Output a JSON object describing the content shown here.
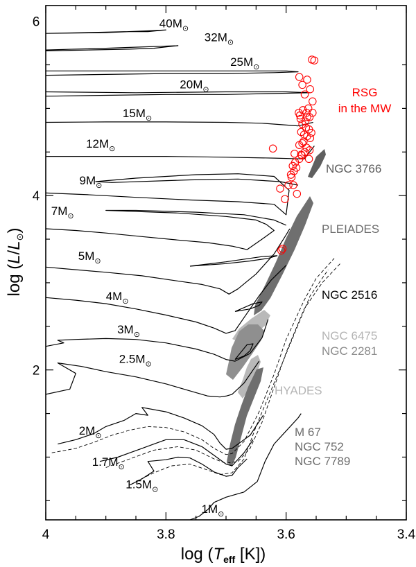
{
  "chart_data": {
    "type": "scatter",
    "title": "",
    "xlabel": "log (T_eff [K])",
    "ylabel": "log (L/L_sun)",
    "x_axis": {
      "label_pre": "log  (",
      "label_var": "T",
      "label_sub": "eff",
      "label_post": " [K])",
      "reversed": true
    },
    "y_axis": {
      "label_pre": "log  (",
      "label_var": "L",
      "label_mid": "/",
      "label_var2": "L",
      "label_post": ")"
    },
    "xlim": [
      4.0,
      3.4
    ],
    "ylim": [
      0.28,
      6.18
    ],
    "x_ticks": [
      {
        "v": 4.0,
        "label": "4"
      },
      {
        "v": 3.8,
        "label": "3.8"
      },
      {
        "v": 3.6,
        "label": "3.6"
      },
      {
        "v": 3.4,
        "label": "3.4"
      }
    ],
    "y_ticks": [
      {
        "v": 2,
        "label": "2"
      },
      {
        "v": 4,
        "label": "4"
      },
      {
        "v": 6,
        "label": "6"
      }
    ],
    "mass_labels": [
      {
        "text": "40M",
        "x": 3.811,
        "y": 5.93
      },
      {
        "text": "32M",
        "x": 3.736,
        "y": 5.77
      },
      {
        "text": "25M",
        "x": 3.693,
        "y": 5.49
      },
      {
        "text": "20M",
        "x": 3.777,
        "y": 5.23
      },
      {
        "text": "15M",
        "x": 3.872,
        "y": 4.9
      },
      {
        "text": "12M",
        "x": 3.933,
        "y": 4.55
      },
      {
        "text": "9M",
        "x": 3.944,
        "y": 4.13
      },
      {
        "text": "7M",
        "x": 3.991,
        "y": 3.78
      },
      {
        "text": "5M",
        "x": 3.946,
        "y": 3.26
      },
      {
        "text": "4M",
        "x": 3.9,
        "y": 2.8
      },
      {
        "text": "3M",
        "x": 3.881,
        "y": 2.42
      },
      {
        "text": "2.5M",
        "x": 3.878,
        "y": 2.08
      },
      {
        "text": "2M",
        "x": 3.945,
        "y": 1.26
      },
      {
        "text": "1.7M",
        "x": 3.923,
        "y": 0.9
      },
      {
        "text": "1.5M",
        "x": 3.867,
        "y": 0.64
      },
      {
        "text": "1M",
        "x": 3.741,
        "y": 0.36
      }
    ],
    "series": [
      {
        "name": "40M",
        "style": "solid",
        "x": [
          4.0,
          3.93,
          3.87,
          3.83,
          3.8,
          3.83,
          3.9,
          4.0
        ],
        "y": [
          5.86,
          5.87,
          5.88,
          5.88,
          5.9,
          5.89,
          5.87,
          5.86
        ]
      },
      {
        "name": "32M",
        "style": "solid",
        "x": [
          4.0,
          3.93,
          3.86,
          3.82,
          3.78,
          3.82,
          3.9,
          4.0
        ],
        "y": [
          5.66,
          5.67,
          5.68,
          5.69,
          5.72,
          5.71,
          5.69,
          5.67
        ]
      },
      {
        "name": "25M",
        "style": "solid",
        "x": [
          4.0,
          3.9,
          3.8,
          3.7,
          3.62,
          3.58,
          3.6,
          3.7,
          3.85,
          4.0
        ],
        "y": [
          5.38,
          5.39,
          5.4,
          5.4,
          5.41,
          5.42,
          5.43,
          5.43,
          5.43,
          5.43
        ]
      },
      {
        "name": "20M",
        "style": "solid",
        "x": [
          4.0,
          3.9,
          3.8,
          3.7,
          3.63,
          3.56,
          3.6,
          3.7,
          3.85,
          4.0
        ],
        "y": [
          5.14,
          5.15,
          5.16,
          5.16,
          5.17,
          5.18,
          5.19,
          5.19,
          5.18,
          5.19
        ]
      },
      {
        "name": "15M",
        "style": "solid",
        "x": [
          4.0,
          3.9,
          3.8,
          3.7,
          3.64,
          3.58,
          3.555
        ],
        "y": [
          4.84,
          4.845,
          4.845,
          4.84,
          4.83,
          4.8,
          4.84
        ]
      },
      {
        "name": "12M",
        "style": "solid",
        "x": [
          4.0,
          3.9,
          3.8,
          3.7,
          3.62,
          3.57,
          3.553
        ],
        "y": [
          4.45,
          4.45,
          4.45,
          4.44,
          4.43,
          4.42,
          4.57
        ]
      },
      {
        "name": "9M",
        "style": "solid",
        "x": [
          4.0,
          3.93,
          3.85,
          3.76,
          3.68,
          3.62,
          3.6,
          3.595,
          3.62,
          3.68,
          3.75,
          3.85,
          3.917,
          3.89,
          3.76,
          3.68,
          3.61,
          3.58
        ],
        "y": [
          4.03,
          4.01,
          3.98,
          3.95,
          3.93,
          3.9,
          3.78,
          4.06,
          4.22,
          4.25,
          4.24,
          4.2,
          4.16,
          4.15,
          4.18,
          4.19,
          4.16,
          4.12
        ]
      },
      {
        "name": "7M",
        "style": "solid",
        "x": [
          4.0,
          3.95,
          3.9,
          3.84,
          3.78,
          3.73,
          3.69,
          3.665,
          3.64,
          3.62,
          3.633,
          3.65,
          3.7,
          3.78,
          3.86,
          3.9,
          3.85,
          3.75,
          3.67,
          3.62,
          3.6
        ],
        "y": [
          3.62,
          3.6,
          3.57,
          3.53,
          3.49,
          3.46,
          3.42,
          3.38,
          3.5,
          3.6,
          3.67,
          3.72,
          3.76,
          3.8,
          3.82,
          3.83,
          3.83,
          3.81,
          3.78,
          3.72,
          3.66
        ]
      },
      {
        "name": "5M",
        "style": "solid",
        "x": [
          4.0,
          3.95,
          3.9,
          3.84,
          3.79,
          3.74,
          3.71,
          3.695,
          3.68,
          3.65,
          3.62,
          3.6,
          3.594
        ],
        "y": [
          3.18,
          3.15,
          3.12,
          3.08,
          3.03,
          2.98,
          2.93,
          2.87,
          2.93,
          3.1,
          3.33,
          3.55,
          3.62
        ]
      },
      {
        "name": "5M-loop",
        "style": "solid",
        "x": [
          3.76,
          3.7,
          3.66,
          3.63,
          3.615,
          3.64,
          3.7,
          3.76
        ],
        "y": [
          3.19,
          3.22,
          3.25,
          3.28,
          3.31,
          3.3,
          3.24,
          3.19
        ]
      },
      {
        "name": "4M",
        "style": "solid",
        "x": [
          4.0,
          3.95,
          3.9,
          3.85,
          3.8,
          3.75,
          3.72,
          3.7,
          3.685,
          3.67,
          3.645,
          3.625,
          3.6
        ],
        "y": [
          2.83,
          2.8,
          2.76,
          2.7,
          2.63,
          2.55,
          2.48,
          2.42,
          2.45,
          2.6,
          2.85,
          3.03,
          3.2
        ]
      },
      {
        "name": "4M-loop",
        "style": "solid",
        "x": [
          3.685,
          3.66,
          3.645,
          3.64,
          3.655,
          3.685
        ],
        "y": [
          2.67,
          2.7,
          2.74,
          2.78,
          2.76,
          2.67
        ]
      },
      {
        "name": "3M",
        "style": "solid",
        "x": [
          4.0,
          3.97,
          3.98,
          3.95,
          3.9,
          3.85,
          3.8,
          3.75,
          3.72,
          3.7,
          3.685,
          3.66,
          3.64,
          3.63
        ],
        "y": [
          2.27,
          2.31,
          2.34,
          2.35,
          2.36,
          2.35,
          2.31,
          2.24,
          2.18,
          2.12,
          2.1,
          2.19,
          2.37,
          2.58
        ]
      },
      {
        "name": "3M-loop",
        "style": "solid",
        "x": [
          3.685,
          3.67,
          3.66,
          3.655,
          3.665,
          3.685
        ],
        "y": [
          2.12,
          2.16,
          2.22,
          2.3,
          2.29,
          2.12
        ]
      },
      {
        "name": "2.5M",
        "style": "solid",
        "x": [
          4.0,
          3.96,
          3.95,
          3.98,
          3.94,
          3.9,
          3.85,
          3.8,
          3.76,
          3.73,
          3.71,
          3.7,
          3.69,
          3.67,
          3.655,
          3.645
        ],
        "y": [
          1.72,
          1.78,
          1.96,
          2.08,
          2.04,
          1.98,
          1.92,
          1.84,
          1.76,
          1.7,
          1.69,
          1.7,
          1.72,
          1.85,
          2.0,
          2.1
        ]
      },
      {
        "name": "2M",
        "style": "solid",
        "x": [
          3.98,
          3.95,
          3.92,
          3.9,
          3.87,
          3.85,
          3.83,
          3.84,
          3.8,
          3.77,
          3.74,
          3.72,
          3.71,
          3.7,
          3.69,
          3.66,
          3.638
        ],
        "y": [
          1.15,
          1.2,
          1.27,
          1.35,
          1.42,
          1.5,
          1.48,
          1.57,
          1.52,
          1.45,
          1.36,
          1.26,
          1.16,
          1.09,
          1.1,
          1.25,
          1.48
        ]
      },
      {
        "name": "2M-dashed",
        "style": "dashed",
        "x": [
          3.99,
          3.95,
          3.92,
          3.89,
          3.86,
          3.83,
          3.8,
          3.77,
          3.74,
          3.72,
          3.7,
          3.69,
          3.67,
          3.645,
          3.62,
          3.6,
          3.57,
          3.55,
          3.52
        ],
        "y": [
          1.05,
          1.1,
          1.17,
          1.25,
          1.31,
          1.35,
          1.34,
          1.29,
          1.2,
          1.1,
          1.03,
          1.04,
          1.18,
          1.52,
          1.95,
          2.35,
          2.8,
          3.05,
          3.28
        ]
      },
      {
        "name": "1.7M",
        "style": "solid",
        "x": [
          3.91,
          3.88,
          3.86,
          3.84,
          3.82,
          3.8,
          3.77,
          3.74,
          3.72,
          3.7,
          3.69,
          3.67,
          3.655
        ],
        "y": [
          0.95,
          1.0,
          1.05,
          1.1,
          1.15,
          1.2,
          1.2,
          1.12,
          1.02,
          0.92,
          0.9,
          1.05,
          1.2
        ]
      },
      {
        "name": "1.7M-dashed",
        "style": "dashed",
        "x": [
          3.9,
          3.86,
          3.82,
          3.78,
          3.75,
          3.72,
          3.7,
          3.68,
          3.66,
          3.64,
          3.62,
          3.6,
          3.57,
          3.54,
          3.51
        ],
        "y": [
          0.88,
          0.98,
          1.08,
          1.12,
          1.08,
          0.98,
          0.93,
          0.95,
          1.1,
          1.4,
          1.8,
          2.2,
          2.7,
          3.0,
          3.22
        ]
      },
      {
        "name": "1.5M",
        "style": "solid",
        "x": [
          3.86,
          3.84,
          3.82,
          3.83,
          3.8,
          3.78,
          3.76,
          3.74,
          3.72,
          3.7,
          3.69,
          3.68,
          3.665
        ],
        "y": [
          0.68,
          0.75,
          0.84,
          0.95,
          0.97,
          1.0,
          0.99,
          0.92,
          0.83,
          0.78,
          0.79,
          0.88,
          0.98
        ]
      },
      {
        "name": "1.5M-dashed",
        "style": "dashed",
        "x": [
          3.85,
          3.82,
          3.79,
          3.76,
          3.73,
          3.71,
          3.69,
          3.67,
          3.65,
          3.62,
          3.59,
          3.56,
          3.53
        ],
        "y": [
          0.72,
          0.82,
          0.9,
          0.92,
          0.85,
          0.8,
          0.82,
          0.98,
          1.35,
          1.85,
          2.35,
          2.85,
          3.15
        ]
      },
      {
        "name": "1M",
        "style": "solid",
        "x": [
          3.76,
          3.745,
          3.73,
          3.72,
          3.7,
          3.67,
          3.648,
          3.635,
          3.62,
          3.6,
          3.58,
          3.575
        ],
        "y": [
          0.28,
          0.32,
          0.4,
          0.48,
          0.54,
          0.6,
          0.72,
          0.95,
          1.15,
          1.3,
          1.45,
          1.5
        ]
      }
    ],
    "rsg_points": {
      "name": "RSG in the MW",
      "x": [
        3.557,
        3.553,
        3.565,
        3.56,
        3.556,
        3.563,
        3.577,
        3.576,
        3.568,
        3.573,
        3.567,
        3.562,
        3.575,
        3.57,
        3.565,
        3.56,
        3.571,
        3.578,
        3.566,
        3.561,
        3.569,
        3.575,
        3.578,
        3.562,
        3.585,
        3.589,
        3.583,
        3.587,
        3.592,
        3.572,
        3.579,
        3.566,
        3.561,
        3.558,
        3.591,
        3.588,
        3.602,
        3.606,
        3.608,
        3.622,
        3.569,
        3.573,
        3.578,
        3.582,
        3.574,
        3.586,
        3.596,
        3.61,
        3.565,
        3.556,
        3.573
      ],
      "y": [
        5.56,
        5.55,
        5.33,
        5.22,
        5.08,
        5.0,
        4.92,
        4.88,
        4.85,
        4.82,
        4.78,
        4.76,
        4.73,
        4.7,
        4.68,
        4.66,
        4.62,
        4.58,
        4.55,
        4.52,
        4.5,
        4.47,
        4.42,
        4.42,
        4.38,
        4.34,
        4.32,
        4.28,
        4.24,
        4.98,
        4.95,
        4.95,
        4.9,
        4.72,
        4.21,
        4.12,
        3.96,
        3.39,
        3.37,
        4.54,
        5.16,
        5.27,
        5.36,
        4.02,
        4.46,
        4.48,
        4.12,
        4.08,
        4.9,
        4.95,
        4.6
      ]
    },
    "clusters": [
      {
        "name": "NGC 3766",
        "color": "#5a5a5a"
      },
      {
        "name": "PLEIADES",
        "color": "#6d6d6d"
      },
      {
        "name": "NGC 2516",
        "color": "#000000"
      },
      {
        "name": "NGC 6475",
        "color": "#b4b4b4"
      },
      {
        "name": "NGC 2281",
        "color": "#8a8a8a"
      },
      {
        "name": "HYADES",
        "color": "#b4b4b4"
      },
      {
        "name": "M 67",
        "color": "#6d6d6d"
      },
      {
        "name": "NGC 752",
        "color": "#6d6d6d"
      },
      {
        "name": "NGC 7789",
        "color": "#6d6d6d"
      }
    ],
    "rsg_label_line1": "RSG",
    "rsg_label_line2": "in the MW",
    "rsg_color": "#ff0000"
  }
}
